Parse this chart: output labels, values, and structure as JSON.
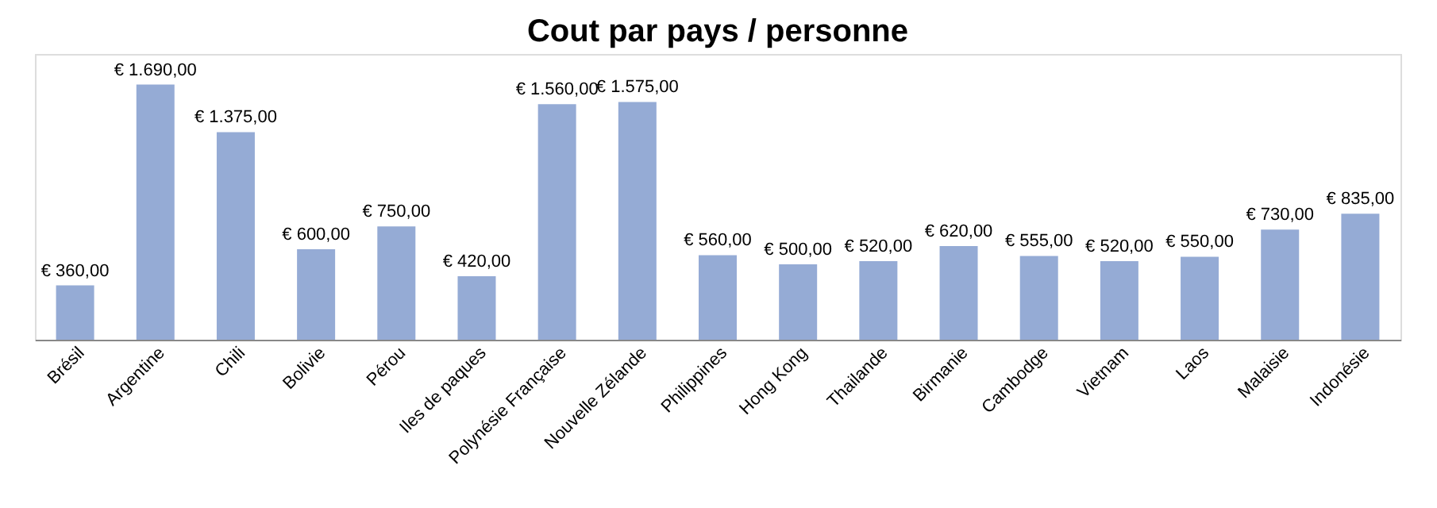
{
  "chart_data": {
    "type": "bar",
    "title": "Cout par pays / personne",
    "categories": [
      "Brésil",
      "Argentine",
      "Chili",
      "Bolivie",
      "Pérou",
      "Iles de paques",
      "Polynésie Française",
      "Nouvelle Zélande",
      "Philippines",
      "Hong Kong",
      "Thailande",
      "Birmanie",
      "Cambodge",
      "Vietnam",
      "Laos",
      "Malaisie",
      "Indonésie"
    ],
    "values": [
      360,
      1690,
      1375,
      600,
      750,
      420,
      1560,
      1575,
      560,
      500,
      520,
      620,
      555,
      520,
      550,
      730,
      835
    ],
    "value_labels": [
      "€ 360,00",
      "€ 1.690,00",
      "€ 1.375,00",
      "€ 600,00",
      "€ 750,00",
      "€ 420,00",
      "€ 1.560,00",
      "€ 1.575,00",
      "€ 560,00",
      "€ 500,00",
      "€ 520,00",
      "€ 620,00",
      "€ 555,00",
      "€ 520,00",
      "€ 550,00",
      "€ 730,00",
      "€ 835,00"
    ],
    "color": "#95abd5"
  }
}
